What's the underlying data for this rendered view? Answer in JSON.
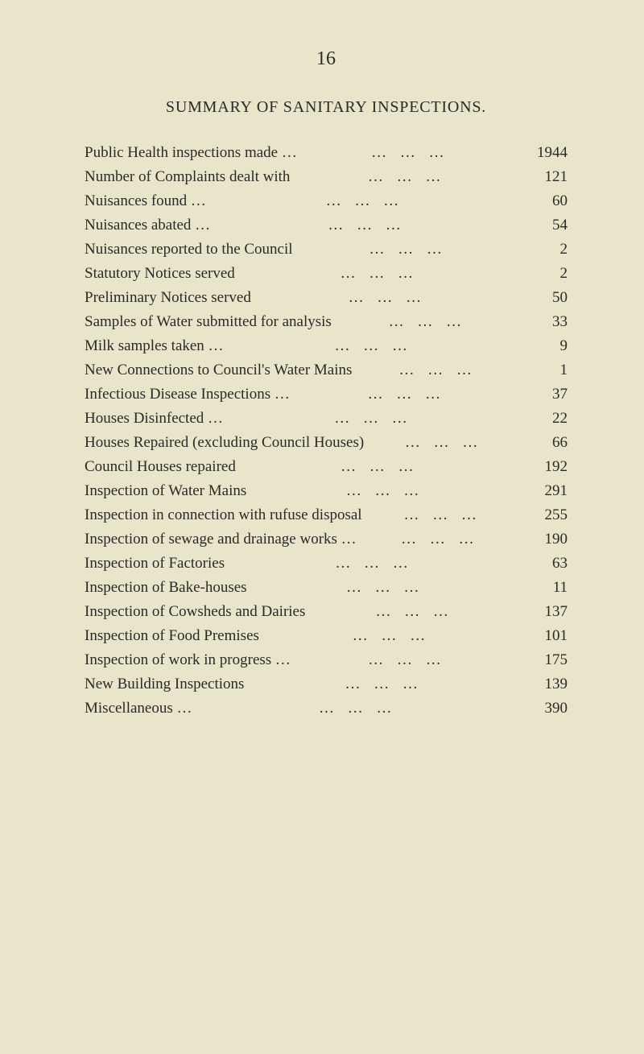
{
  "page_number": "16",
  "title": "SUMMARY OF SANITARY INSPECTIONS.",
  "dots_pattern": "…",
  "items": [
    {
      "label": "Public Health inspections made …",
      "value": "1944"
    },
    {
      "label": "Number of Complaints dealt with",
      "value": "121"
    },
    {
      "label": "Nuisances found     …",
      "value": "60"
    },
    {
      "label": "Nuisances abated      …",
      "value": "54"
    },
    {
      "label": "Nuisances reported to the Council",
      "value": "2"
    },
    {
      "label": "Statutory Notices served",
      "value": "2"
    },
    {
      "label": "Preliminary Notices served",
      "value": "50"
    },
    {
      "label": "Samples of Water submitted for analysis",
      "value": "33"
    },
    {
      "label": "Milk samples taken   …",
      "value": "9"
    },
    {
      "label": "New Connections to Council's Water Mains",
      "value": "1"
    },
    {
      "label": "Infectious Disease Inspections   …",
      "value": "37"
    },
    {
      "label": "Houses Disinfected   …",
      "value": "22"
    },
    {
      "label": "Houses Repaired (excluding Council Houses)",
      "value": "66"
    },
    {
      "label": "Council Houses repaired",
      "value": "192"
    },
    {
      "label": "Inspection of Water Mains",
      "value": "291"
    },
    {
      "label": "Inspection in connection with rufuse disposal",
      "value": "255"
    },
    {
      "label": "Inspection of sewage and drainage works   …",
      "value": "190"
    },
    {
      "label": "Inspection of Factories",
      "value": "63"
    },
    {
      "label": "Inspection of Bake-houses",
      "value": "11"
    },
    {
      "label": "Inspection of Cowsheds and Dairies",
      "value": "137"
    },
    {
      "label": "Inspection of Food Premises",
      "value": "101"
    },
    {
      "label": "Inspection of work in progress   …",
      "value": "175"
    },
    {
      "label": "New Building Inspections",
      "value": "139"
    },
    {
      "label": "Miscellaneous        …",
      "value": "390"
    }
  ]
}
